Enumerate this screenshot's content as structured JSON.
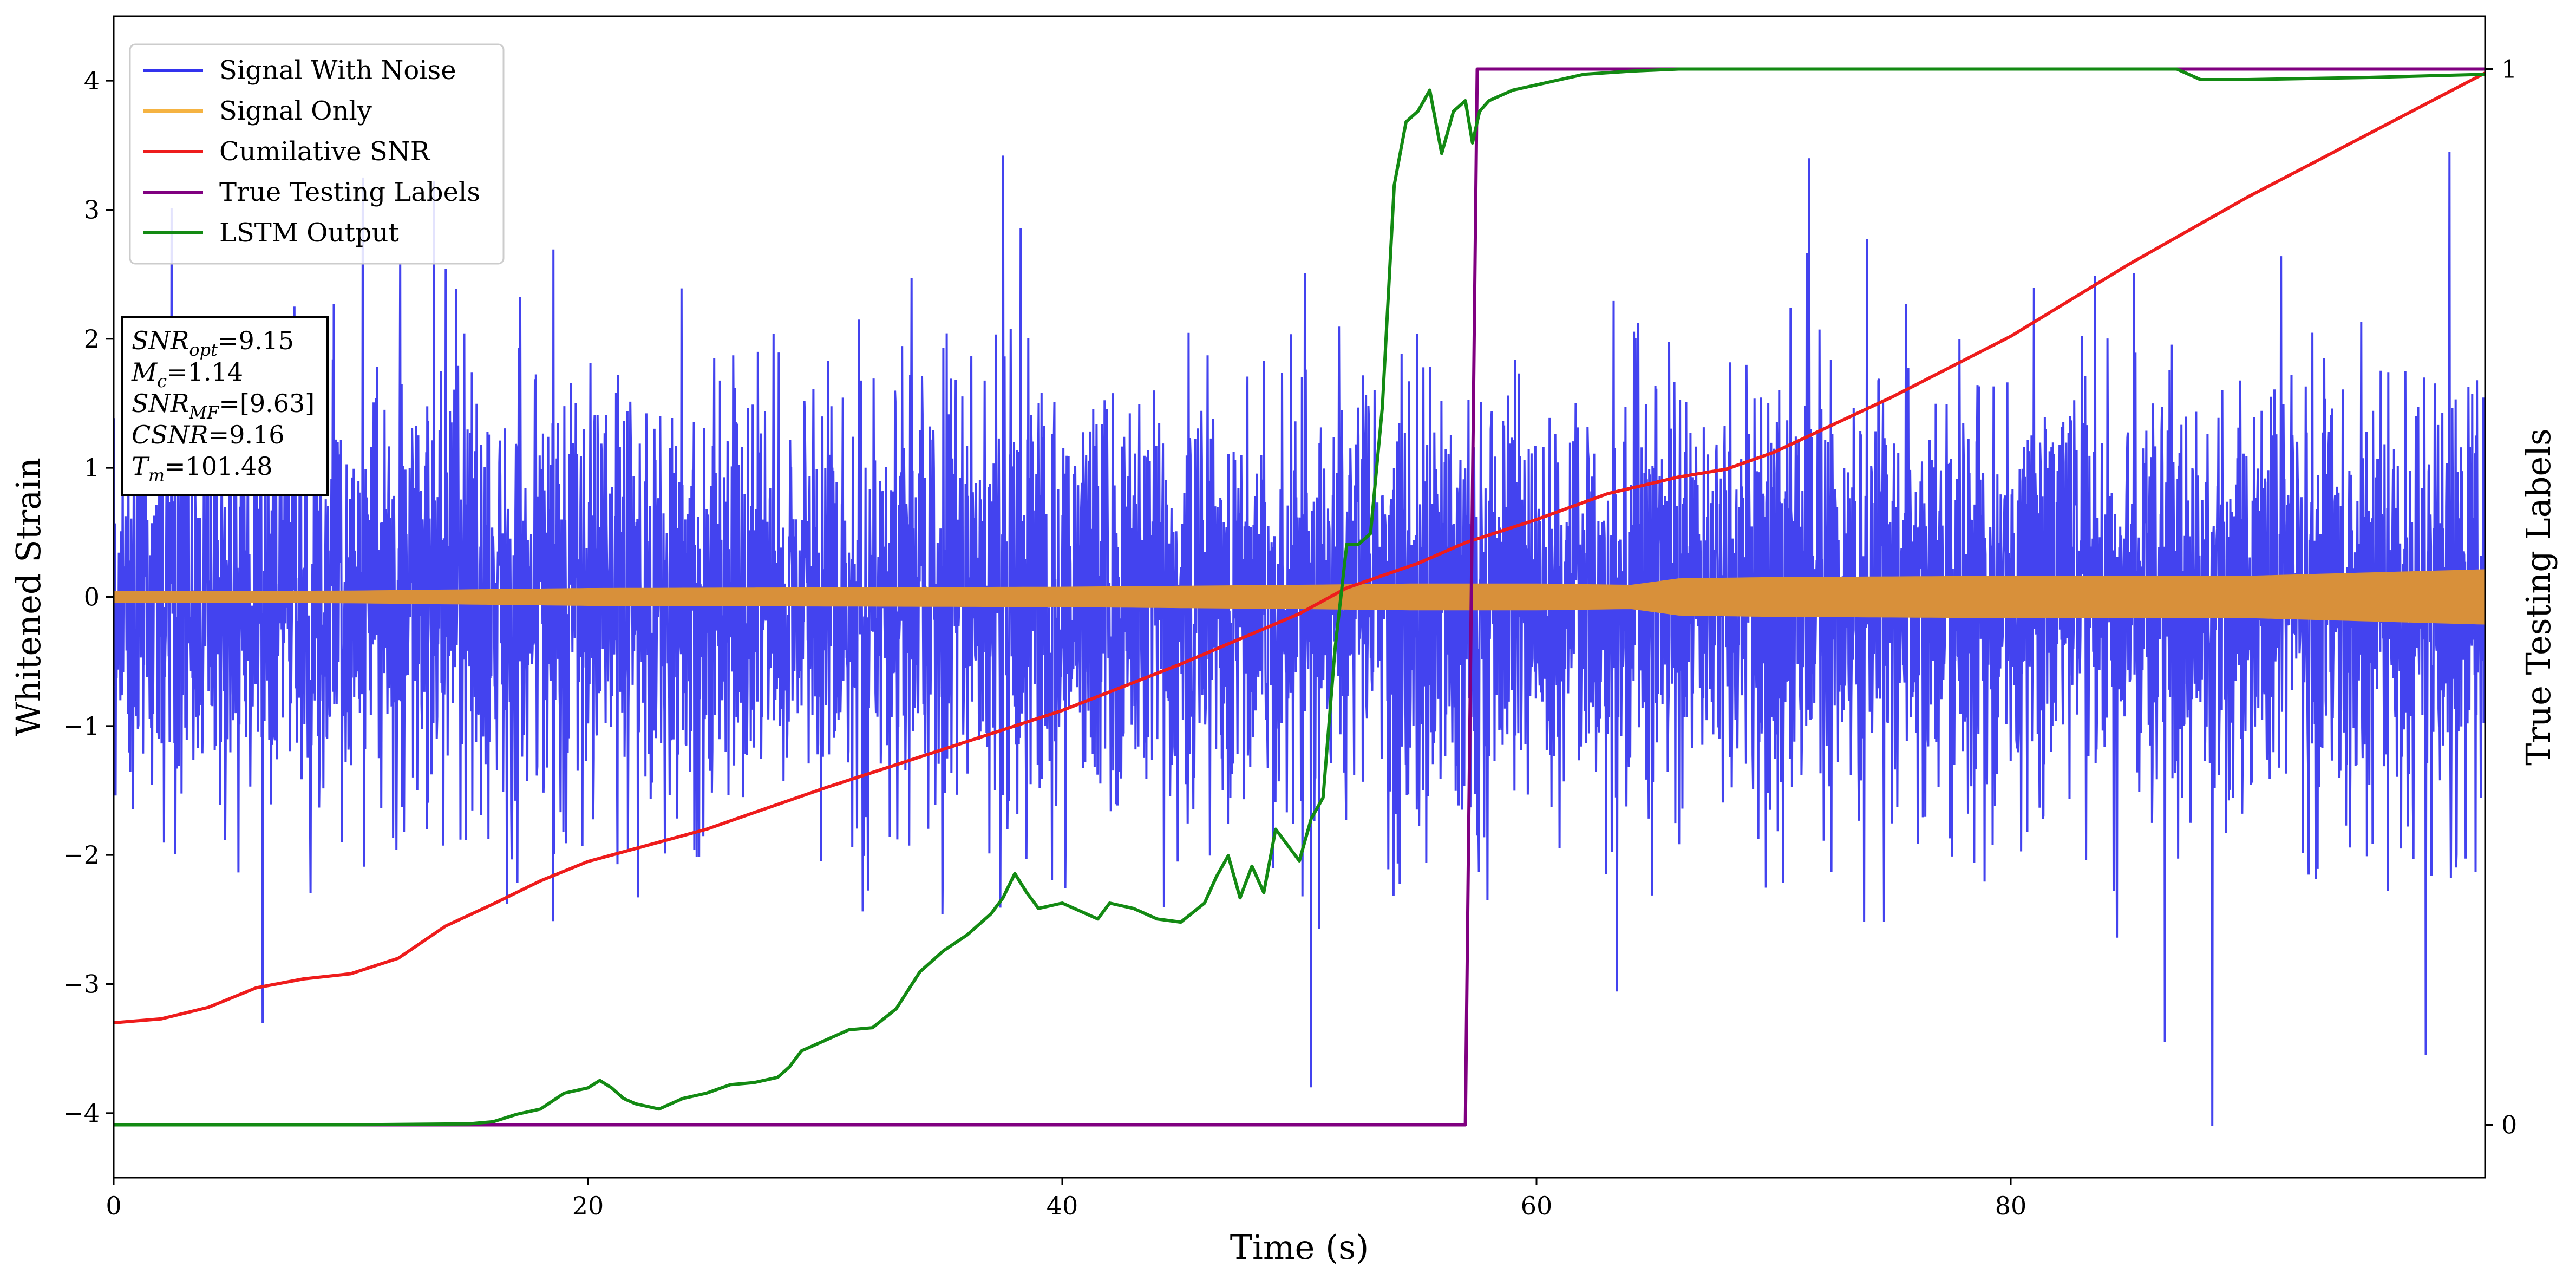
{
  "chart_data": {
    "type": "line",
    "title": "",
    "xlabel": "Time (s)",
    "ylabel": "Whitened Strain",
    "y2label": "True Testing Labels",
    "xlim": [
      0,
      100
    ],
    "ylim": [
      -4.5,
      4.5
    ],
    "y2lim": [
      -0.05,
      1.05
    ],
    "x_ticks": [
      0,
      20,
      40,
      60,
      80
    ],
    "y_ticks": [
      -4,
      -3,
      -2,
      -1,
      0,
      1,
      2,
      3,
      4
    ],
    "y_tick_labels": [
      "−4",
      "−3",
      "−2",
      "−1",
      "0",
      "1",
      "2",
      "3",
      "4"
    ],
    "y2_ticks": [
      0,
      1
    ],
    "grid": false,
    "legend_position": "top-left",
    "legend": [
      {
        "name": "Signal With Noise",
        "color": "#3333ee"
      },
      {
        "name": "Signal Only",
        "color": "#f5b342"
      },
      {
        "name": "Cumilative SNR",
        "color": "#ee1c1c"
      },
      {
        "name": "True Testing Labels",
        "color": "#800080"
      },
      {
        "name": "LSTM Output",
        "color": "#138a13"
      }
    ],
    "annotation": {
      "lines": [
        {
          "label": "SNR",
          "sub": "opt",
          "value": "=9.15"
        },
        {
          "label": "M",
          "sub": "c",
          "value": "=1.14"
        },
        {
          "label": "SNR",
          "sub": "MF",
          "value": "=[9.63]"
        },
        {
          "label": "CSNR",
          "sub": "",
          "value": "=9.16"
        },
        {
          "label": "T",
          "sub": "m",
          "value": "=101.48"
        }
      ]
    },
    "series": [
      {
        "name": "Signal With Noise",
        "axis": "left",
        "style": "noise",
        "color": "#3333ee",
        "n": 5000,
        "std": 0.85,
        "notable_extremes": [
          [
            10.5,
            3.25
          ],
          [
            13.5,
            3.22
          ],
          [
            37.5,
            3.42
          ],
          [
            50.5,
            -3.8
          ],
          [
            71.5,
            3.4
          ],
          [
            86.5,
            -3.45
          ],
          [
            88.5,
            -4.1
          ],
          [
            98.5,
            3.45
          ],
          [
            97.5,
            -3.55
          ]
        ]
      },
      {
        "name": "Signal Only",
        "axis": "left",
        "style": "envelope",
        "color": "#d8903a",
        "envelope_x": [
          0,
          10,
          20,
          30,
          40,
          50,
          55,
          60,
          64,
          66,
          70,
          80,
          90,
          100
        ],
        "envelope_amplitude": [
          0.04,
          0.045,
          0.065,
          0.07,
          0.075,
          0.09,
          0.1,
          0.1,
          0.09,
          0.14,
          0.15,
          0.16,
          0.16,
          0.21
        ]
      },
      {
        "name": "Cumilative SNR",
        "axis": "left",
        "style": "line",
        "color": "#ee1c1c",
        "x": [
          0,
          2,
          4,
          6,
          8,
          10,
          12,
          14,
          16,
          18,
          20,
          22,
          25,
          30,
          35,
          40,
          45,
          50,
          52,
          55,
          57,
          60,
          63,
          66,
          68,
          70,
          75,
          80,
          85,
          90,
          95,
          100
        ],
        "y": [
          -3.3,
          -3.27,
          -3.18,
          -3.03,
          -2.96,
          -2.92,
          -2.8,
          -2.55,
          -2.38,
          -2.2,
          -2.05,
          -1.95,
          -1.8,
          -1.48,
          -1.18,
          -0.88,
          -0.52,
          -0.13,
          0.07,
          0.26,
          0.42,
          0.6,
          0.8,
          0.93,
          0.99,
          1.12,
          1.55,
          2.02,
          2.58,
          3.1,
          3.58,
          4.06
        ]
      },
      {
        "name": "True Testing Labels",
        "axis": "right",
        "style": "line",
        "color": "#800080",
        "x": [
          0,
          57.0,
          57.5,
          100
        ],
        "y": [
          0,
          0,
          1,
          1
        ]
      },
      {
        "name": "LSTM Output",
        "axis": "right",
        "style": "line",
        "color": "#138a13",
        "x": [
          0,
          10,
          15,
          16,
          17,
          18,
          19,
          20,
          20.5,
          21,
          21.5,
          22,
          23,
          24,
          25,
          26,
          27,
          28,
          28.5,
          29,
          30,
          31,
          32,
          33,
          34,
          35,
          36,
          37,
          37.5,
          38,
          38.5,
          39,
          40,
          41,
          41.5,
          42,
          43,
          44,
          45,
          46,
          46.5,
          47,
          47.5,
          48,
          48.5,
          49,
          50,
          50.5,
          51,
          51.5,
          52,
          52.5,
          53,
          53.5,
          54,
          54.5,
          55,
          55.5,
          56,
          56.5,
          57,
          57.3,
          57.6,
          58,
          59,
          60,
          61,
          62,
          64,
          66,
          70,
          80,
          85,
          87,
          88,
          90,
          95,
          100
        ],
        "y": [
          0,
          0,
          0.001,
          0.003,
          0.01,
          0.015,
          0.03,
          0.035,
          0.042,
          0.035,
          0.025,
          0.02,
          0.015,
          0.025,
          0.03,
          0.038,
          0.04,
          0.045,
          0.055,
          0.07,
          0.08,
          0.09,
          0.092,
          0.11,
          0.145,
          0.165,
          0.18,
          0.2,
          0.215,
          0.238,
          0.22,
          0.205,
          0.21,
          0.2,
          0.195,
          0.21,
          0.205,
          0.195,
          0.192,
          0.21,
          0.235,
          0.255,
          0.215,
          0.245,
          0.22,
          0.28,
          0.25,
          0.29,
          0.31,
          0.45,
          0.55,
          0.55,
          0.56,
          0.68,
          0.89,
          0.95,
          0.96,
          0.98,
          0.92,
          0.96,
          0.97,
          0.93,
          0.96,
          0.97,
          0.98,
          0.985,
          0.99,
          0.995,
          0.998,
          1.0,
          1.0,
          1.0,
          1.0,
          1.0,
          0.99,
          0.99,
          0.992,
          0.995
        ]
      }
    ]
  }
}
